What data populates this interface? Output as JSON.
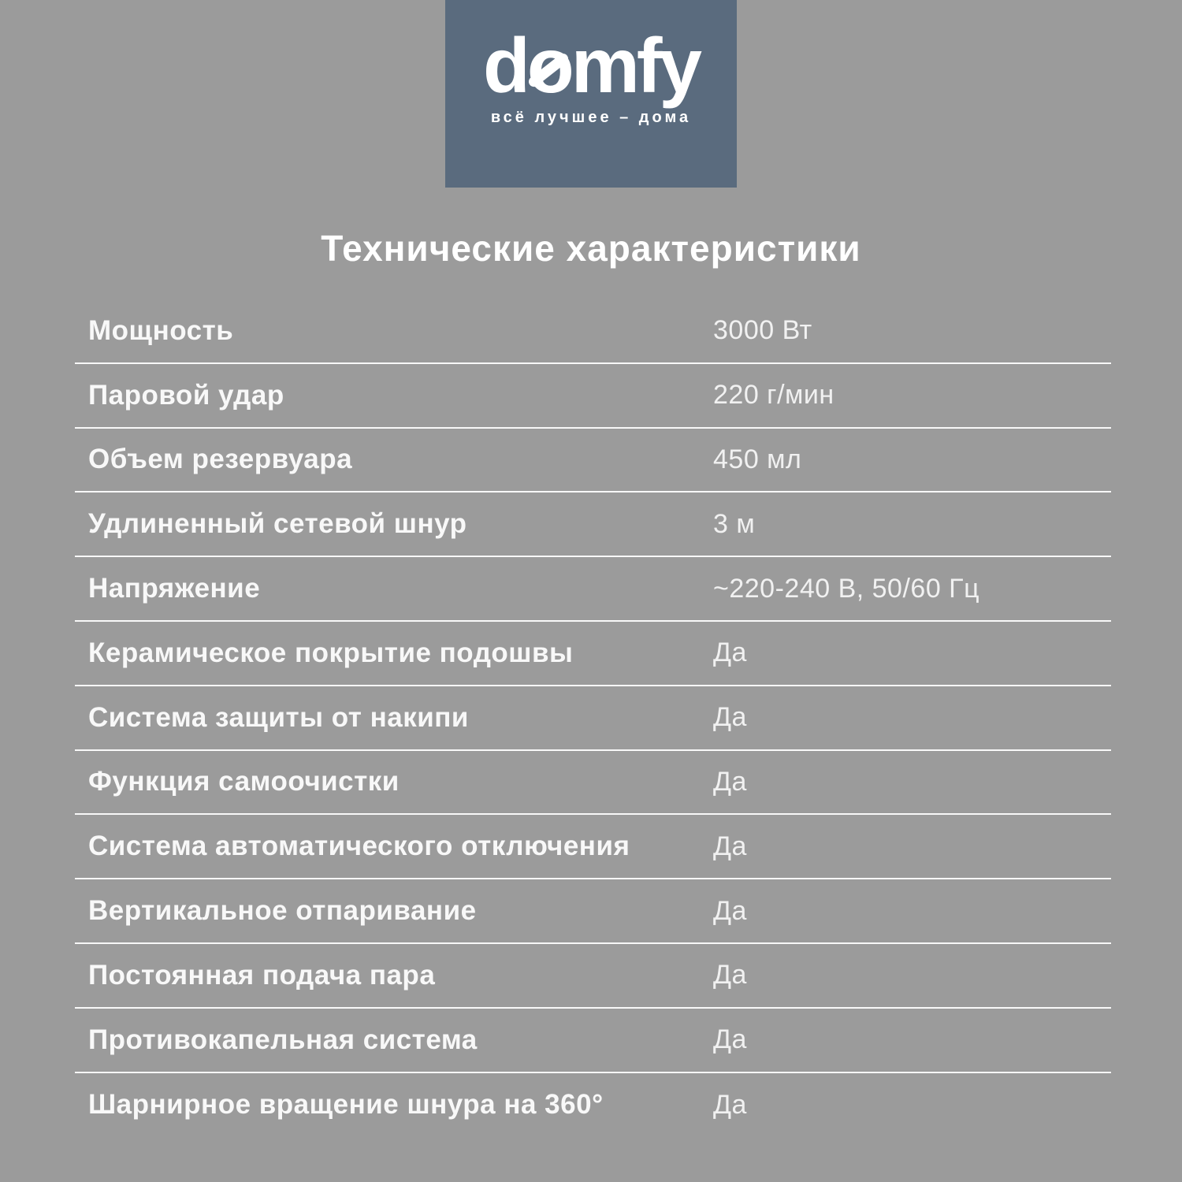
{
  "brand": {
    "logo_text_prefix": "d",
    "logo_text_knot": "o",
    "logo_text_suffix": "mfy",
    "logo_full": "domfy",
    "tagline": "всё лучшее – дома",
    "box_color": "#5A6B7E"
  },
  "page": {
    "title": "Технические характеристики",
    "background_color": "#9B9B9B",
    "text_color": "#FFFFFF"
  },
  "table": {
    "rows": [
      {
        "label": "Мощность",
        "value": "3000 Вт"
      },
      {
        "label": "Паровой удар",
        "value": "220 г/мин"
      },
      {
        "label": "Объем резервуара",
        "value": "450 мл"
      },
      {
        "label": "Удлиненный сетевой шнур",
        "value": "3 м"
      },
      {
        "label": "Напряжение",
        "value": "~220-240 В, 50/60 Гц"
      },
      {
        "label": "Керамическое покрытие подошвы",
        "value": "Да"
      },
      {
        "label": "Система защиты от накипи",
        "value": "Да"
      },
      {
        "label": "Функция самоочистки",
        "value": "Да"
      },
      {
        "label": "Система автоматического отключения",
        "value": "Да"
      },
      {
        "label": "Вертикальное отпаривание",
        "value": "Да"
      },
      {
        "label": "Постоянная подача пара",
        "value": "Да"
      },
      {
        "label": "Противокапельная система",
        "value": "Да"
      },
      {
        "label": "Шарнирное вращение шнура на 360°",
        "value": "Да"
      }
    ]
  }
}
